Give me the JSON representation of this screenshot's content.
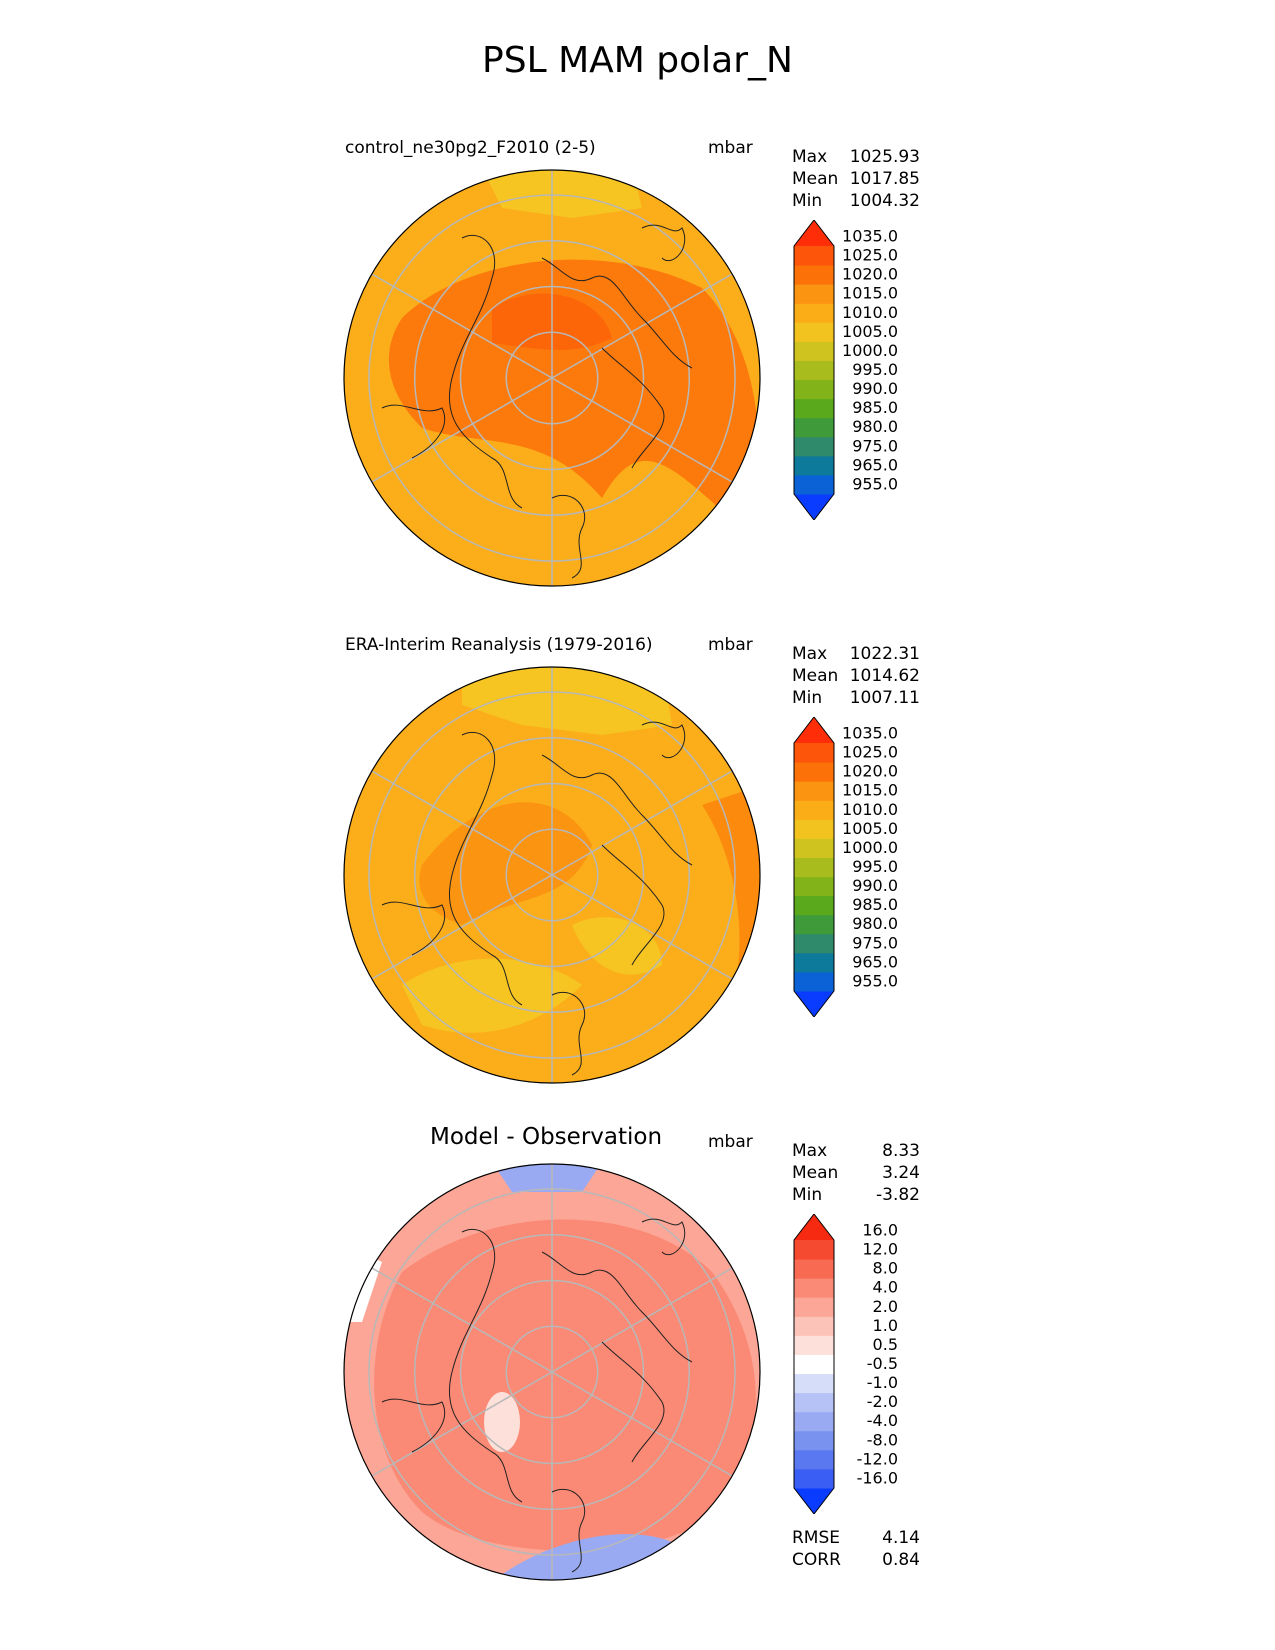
{
  "figure_title": "PSL MAM polar_N",
  "units": "mbar",
  "chart_data": [
    {
      "type": "heatmap",
      "projection": "north-polar-stereographic",
      "title": "control_ne30pg2_F2010 (2-5)",
      "units": "mbar",
      "stats": {
        "max": "1025.93",
        "mean": "1017.85",
        "min": "1004.32"
      },
      "colorbar_levels": [
        "955.0",
        "965.0",
        "975.0",
        "980.0",
        "985.0",
        "990.0",
        "995.0",
        "1000.0",
        "1005.0",
        "1010.0",
        "1015.0",
        "1020.0",
        "1025.0",
        "1035.0"
      ],
      "colorbar_colors": [
        "#0a3cff",
        "#0a62d6",
        "#0d7a9c",
        "#2e8a6a",
        "#3f9a3a",
        "#5aa81c",
        "#82b41a",
        "#a8bc1e",
        "#cfc320",
        "#f2c21e",
        "#fbad18",
        "#fb9410",
        "#fc7208",
        "#fd560a",
        "#ff2e08"
      ],
      "fill": {
        "base": "#fbae1a",
        "high": "#fc7a0c",
        "low": "#f6c522"
      }
    },
    {
      "type": "heatmap",
      "projection": "north-polar-stereographic",
      "title": "ERA-Interim Reanalysis (1979-2016)",
      "units": "mbar",
      "stats": {
        "max": "1022.31",
        "mean": "1014.62",
        "min": "1007.11"
      },
      "colorbar_levels": [
        "955.0",
        "965.0",
        "975.0",
        "980.0",
        "985.0",
        "990.0",
        "995.0",
        "1000.0",
        "1005.0",
        "1010.0",
        "1015.0",
        "1020.0",
        "1025.0",
        "1035.0"
      ],
      "colorbar_colors": [
        "#0a3cff",
        "#0a62d6",
        "#0d7a9c",
        "#2e8a6a",
        "#3f9a3a",
        "#5aa81c",
        "#82b41a",
        "#a8bc1e",
        "#cfc320",
        "#f2c21e",
        "#fbad18",
        "#fb9410",
        "#fc7208",
        "#fd560a",
        "#ff2e08"
      ],
      "fill": {
        "base": "#fbae1a",
        "high": "#fb9410",
        "low": "#f6c522"
      }
    },
    {
      "type": "heatmap",
      "projection": "north-polar-stereographic",
      "title": "Model - Observation",
      "units": "mbar",
      "stats": {
        "max": "8.33",
        "mean": "3.24",
        "min": "-3.82"
      },
      "colorbar_levels": [
        "-16.0",
        "-12.0",
        "-8.0",
        "-4.0",
        "-2.0",
        "-1.0",
        "-0.5",
        "0.5",
        "1.0",
        "2.0",
        "4.0",
        "8.0",
        "12.0",
        "16.0"
      ],
      "colorbar_colors": [
        "#0a3cff",
        "#3a5ef4",
        "#5a78ef",
        "#7a92ef",
        "#9aaaf2",
        "#b6c2f5",
        "#d6ddf8",
        "#ffffff",
        "#fde0da",
        "#fcc4b8",
        "#fba696",
        "#fa8a76",
        "#f86a52",
        "#f64a30",
        "#f52a10"
      ],
      "fill": {
        "base": "#fba696",
        "high": "#fa8a76",
        "low": "#9aaaf2",
        "near_zero": "#ffffff"
      },
      "rmse": "4.14",
      "corr": "0.84"
    }
  ],
  "labels": {
    "max": "Max",
    "mean": "Mean",
    "min": "Min",
    "rmse": "RMSE",
    "corr": "CORR"
  }
}
